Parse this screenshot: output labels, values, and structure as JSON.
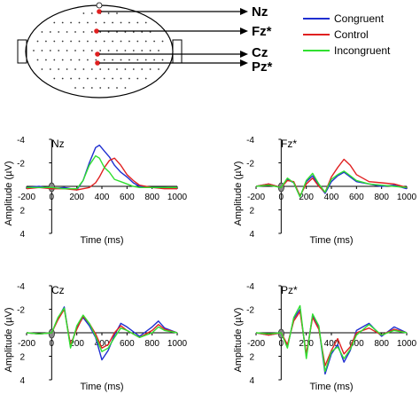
{
  "electrode_map": {
    "labels": [
      "Nz",
      "Fz*",
      "Cz",
      "Pz*"
    ]
  },
  "legend": [
    {
      "name": "Congruent",
      "color": "#1f2fd0"
    },
    {
      "name": "Control",
      "color": "#e02020"
    },
    {
      "name": "Incongruent",
      "color": "#30e030"
    }
  ],
  "chart_data": [
    {
      "type": "line",
      "panel": "Nz",
      "xlabel": "Time (ms)",
      "ylabel": "Amplitude (µV)",
      "xlim": [
        -200,
        1000
      ],
      "ylim": [
        -4,
        4
      ],
      "y_inverted": true,
      "x_ticks": [
        "-200",
        "0",
        "200",
        "400",
        "600",
        "800",
        "1000"
      ],
      "y_ticks": [
        "-4",
        "-2",
        "0",
        "2",
        "4"
      ],
      "x": [
        -200,
        -100,
        0,
        100,
        200,
        250,
        300,
        350,
        380,
        420,
        460,
        500,
        550,
        600,
        650,
        700,
        800,
        900,
        1000
      ],
      "series": [
        {
          "name": "Congruent",
          "color": "#1f2fd0",
          "values": [
            0.1,
            0,
            0.2,
            0.1,
            0.3,
            -0.5,
            -2.0,
            -3.3,
            -3.5,
            -3.0,
            -2.5,
            -1.8,
            -1.2,
            -0.8,
            -0.3,
            0,
            0.1,
            0.1,
            0.2
          ]
        },
        {
          "name": "Control",
          "color": "#e02020",
          "values": [
            0.2,
            0.1,
            0.2,
            0.2,
            0.3,
            0.2,
            0.1,
            -0.3,
            -0.8,
            -1.6,
            -2.2,
            -2.4,
            -1.8,
            -1.0,
            -0.5,
            -0.1,
            0.1,
            0.2,
            0.2
          ]
        },
        {
          "name": "Incongruent",
          "color": "#30e030",
          "values": [
            0.1,
            0.1,
            0.1,
            0.2,
            0.2,
            -0.5,
            -1.8,
            -2.6,
            -2.4,
            -1.6,
            -1.2,
            -0.6,
            -0.4,
            -0.2,
            0,
            0.1,
            0.1,
            0.1,
            0.1
          ]
        }
      ]
    },
    {
      "type": "line",
      "panel": "Fz*",
      "xlabel": "Time (ms)",
      "ylabel": "Amplitude (µV)",
      "xlim": [
        -200,
        1000
      ],
      "ylim": [
        -4,
        4
      ],
      "y_inverted": true,
      "x_ticks": [
        "-200",
        "0",
        "200",
        "400",
        "600",
        "800",
        "1000"
      ],
      "y_ticks": [
        "-4",
        "-2",
        "0",
        "2",
        "4"
      ],
      "x": [
        -200,
        -100,
        0,
        50,
        100,
        150,
        200,
        250,
        300,
        350,
        400,
        450,
        500,
        550,
        600,
        700,
        800,
        900,
        1000
      ],
      "series": [
        {
          "name": "Congruent",
          "color": "#1f2fd0",
          "values": [
            0,
            -0.2,
            0.1,
            -0.6,
            -0.3,
            0.9,
            -0.4,
            -0.9,
            -0.1,
            0.6,
            -0.4,
            -0.9,
            -1.2,
            -0.8,
            -0.4,
            -0.2,
            0,
            -0.1,
            0.2
          ]
        },
        {
          "name": "Control",
          "color": "#e02020",
          "values": [
            0,
            -0.2,
            0.1,
            -0.5,
            -0.4,
            0.8,
            -0.2,
            -0.7,
            0,
            0.5,
            -0.8,
            -1.6,
            -2.3,
            -1.8,
            -1.0,
            -0.4,
            -0.3,
            -0.2,
            0.1
          ]
        },
        {
          "name": "Incongruent",
          "color": "#30e030",
          "values": [
            0,
            -0.1,
            0.1,
            -0.7,
            -0.3,
            0.9,
            -0.5,
            -1.1,
            -0.2,
            0.5,
            -0.6,
            -1.0,
            -1.3,
            -0.9,
            -0.5,
            -0.2,
            -0.1,
            0,
            0.1
          ]
        }
      ]
    },
    {
      "type": "line",
      "panel": "Cz",
      "xlabel": "Time (ms)",
      "ylabel": "Amplitude (µV)",
      "xlim": [
        -200,
        1000
      ],
      "ylim": [
        -4,
        4
      ],
      "y_inverted": true,
      "x_ticks": [
        "-200",
        "0",
        "200",
        "400",
        "600",
        "800",
        "1000"
      ],
      "y_ticks": [
        "-4",
        "-2",
        "0",
        "2",
        "4"
      ],
      "x": [
        -200,
        -100,
        0,
        50,
        100,
        150,
        200,
        250,
        300,
        350,
        400,
        450,
        500,
        550,
        600,
        700,
        800,
        850,
        900,
        1000
      ],
      "series": [
        {
          "name": "Congruent",
          "color": "#1f2fd0",
          "values": [
            0,
            0.1,
            0,
            -1.2,
            -2.2,
            1.2,
            -0.5,
            -1.3,
            -0.6,
            0.4,
            2.3,
            1.5,
            0.2,
            -0.8,
            -0.5,
            0.3,
            -0.5,
            -1.0,
            -0.4,
            0
          ]
        },
        {
          "name": "Control",
          "color": "#e02020",
          "values": [
            0,
            0.1,
            0,
            -1.1,
            -2.0,
            1.0,
            -0.3,
            -1.4,
            -0.8,
            0.1,
            1.3,
            1.0,
            0,
            -0.6,
            -0.2,
            0.4,
            -0.2,
            -0.7,
            -0.3,
            0
          ]
        },
        {
          "name": "Incongruent",
          "color": "#30e030",
          "values": [
            0,
            0.1,
            0,
            -1.3,
            -2.1,
            1.3,
            -0.6,
            -1.5,
            -0.8,
            0.3,
            1.6,
            1.3,
            0.4,
            -0.4,
            -0.2,
            0.4,
            0,
            -0.5,
            -0.2,
            0
          ]
        }
      ]
    },
    {
      "type": "line",
      "panel": "Pz*",
      "xlabel": "Time (ms)",
      "ylabel": "Amplitude (µV)",
      "xlim": [
        -200,
        1000
      ],
      "ylim": [
        -4,
        4
      ],
      "y_inverted": true,
      "x_ticks": [
        "-200",
        "0",
        "200",
        "400",
        "600",
        "800",
        "1000"
      ],
      "y_ticks": [
        "-4",
        "-2",
        "0",
        "2",
        "4"
      ],
      "x": [
        -200,
        -100,
        0,
        50,
        100,
        150,
        200,
        250,
        300,
        350,
        400,
        450,
        500,
        550,
        600,
        700,
        800,
        900,
        1000
      ],
      "series": [
        {
          "name": "Congruent",
          "color": "#1f2fd0",
          "values": [
            0,
            0.2,
            0,
            1.2,
            -1.2,
            -2.0,
            2.0,
            -1.5,
            -0.5,
            3.5,
            1.8,
            1.0,
            2.5,
            1.5,
            -0.2,
            -0.8,
            0.3,
            -0.5,
            0
          ]
        },
        {
          "name": "Control",
          "color": "#e02020",
          "values": [
            0,
            0.2,
            0,
            1.0,
            -1.0,
            -1.8,
            1.8,
            -1.3,
            -0.3,
            2.8,
            1.5,
            0.5,
            1.8,
            1.2,
            0,
            -0.4,
            0.2,
            -0.3,
            0
          ]
        },
        {
          "name": "Incongruent",
          "color": "#30e030",
          "values": [
            0,
            0.1,
            0,
            1.3,
            -1.3,
            -2.3,
            2.2,
            -1.6,
            -0.6,
            3.3,
            1.6,
            1.2,
            2.2,
            1.4,
            0.2,
            -0.7,
            0.2,
            -0.2,
            0
          ]
        }
      ]
    }
  ]
}
